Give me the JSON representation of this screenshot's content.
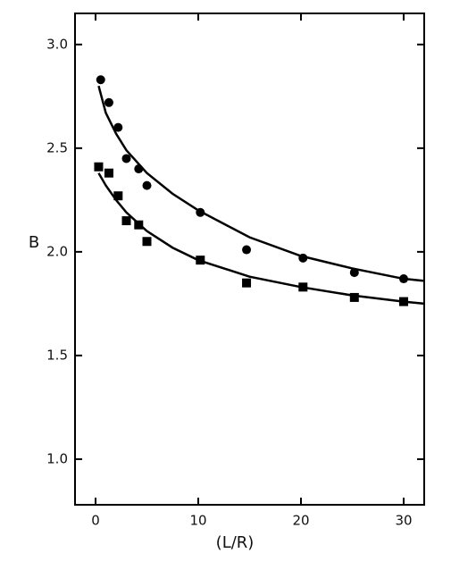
{
  "chart_data": {
    "type": "scatter",
    "xlabel": "(L/R)",
    "ylabel": "B",
    "xlim": [
      -2,
      32
    ],
    "ylim": [
      0.78,
      3.15
    ],
    "xticks": [
      0,
      10,
      20,
      30
    ],
    "yticks": [
      {
        "value": 1.0,
        "label": "1.0"
      },
      {
        "value": 1.5,
        "label": "1.5"
      },
      {
        "value": 2.0,
        "label": "2.0"
      },
      {
        "value": 2.5,
        "label": "2.5"
      },
      {
        "value": 3.0,
        "label": "3.0"
      }
    ],
    "series": [
      {
        "marker": "circle",
        "color": "#000000",
        "x": [
          0.5,
          1.3,
          2.2,
          3,
          4.2,
          5,
          10.2,
          14.7,
          20.2,
          25.2,
          30
        ],
        "values": [
          2.83,
          2.72,
          2.6,
          2.45,
          2.4,
          2.32,
          2.19,
          2.01,
          1.97,
          1.9,
          1.87
        ]
      },
      {
        "marker": "square",
        "color": "#000000",
        "x": [
          0.3,
          1.3,
          2.2,
          3,
          4.2,
          5,
          10.2,
          14.7,
          20.2,
          25.2,
          30
        ],
        "values": [
          2.41,
          2.38,
          2.27,
          2.15,
          2.13,
          2.05,
          1.96,
          1.85,
          1.83,
          1.78,
          1.76
        ]
      }
    ],
    "curves": [
      {
        "color": "#000000",
        "x": [
          0.3,
          1,
          2,
          3,
          5,
          7.5,
          10,
          15,
          20,
          25,
          30,
          32
        ],
        "values": [
          2.8,
          2.67,
          2.57,
          2.49,
          2.38,
          2.28,
          2.2,
          2.07,
          1.98,
          1.92,
          1.87,
          1.86
        ]
      },
      {
        "color": "#000000",
        "x": [
          0.3,
          1,
          2,
          3,
          5,
          7.5,
          10,
          15,
          20,
          25,
          30,
          32
        ],
        "values": [
          2.38,
          2.32,
          2.25,
          2.19,
          2.1,
          2.02,
          1.96,
          1.88,
          1.83,
          1.79,
          1.76,
          1.75
        ]
      }
    ]
  }
}
